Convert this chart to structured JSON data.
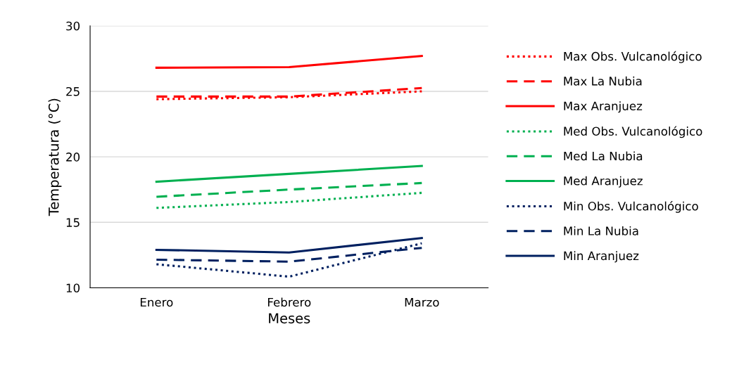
{
  "chart_data": {
    "type": "line",
    "xlabel": "Meses",
    "ylabel": "Temperatura (°C)",
    "categories": [
      "Enero",
      "Febrero",
      "Marzo"
    ],
    "ylim": [
      10,
      30
    ],
    "yticks": [
      10,
      15,
      20,
      25,
      30
    ],
    "grid": "y",
    "legend": "right",
    "marker": "none",
    "series": [
      {
        "name": "Max Obs. Vulcanológico",
        "color": "#ff0000",
        "line_style": "dotted",
        "values": [
          24.4,
          24.55,
          25.0
        ]
      },
      {
        "name": "Max La Nubia",
        "color": "#ff0000",
        "line_style": "dashed",
        "values": [
          24.6,
          24.6,
          25.25
        ]
      },
      {
        "name": "Max Aranjuez",
        "color": "#ff0000",
        "line_style": "solid",
        "values": [
          26.8,
          26.85,
          27.7
        ]
      },
      {
        "name": "Med Obs. Vulcanológico",
        "color": "#00b050",
        "line_style": "dotted",
        "values": [
          16.1,
          16.55,
          17.25
        ]
      },
      {
        "name": "Med La Nubia",
        "color": "#00b050",
        "line_style": "dashed",
        "values": [
          16.95,
          17.5,
          18.0
        ]
      },
      {
        "name": "Med Aranjuez",
        "color": "#00b050",
        "line_style": "solid",
        "values": [
          18.1,
          18.7,
          19.3
        ]
      },
      {
        "name": "Min Obs. Vulcanológico",
        "color": "#002060",
        "line_style": "dotted",
        "values": [
          11.8,
          10.85,
          13.4
        ]
      },
      {
        "name": "Min La Nubia",
        "color": "#002060",
        "line_style": "dashed",
        "values": [
          12.15,
          12.0,
          13.05
        ]
      },
      {
        "name": "Min Aranjuez",
        "color": "#002060",
        "line_style": "solid",
        "values": [
          12.9,
          12.7,
          13.8
        ]
      }
    ]
  }
}
